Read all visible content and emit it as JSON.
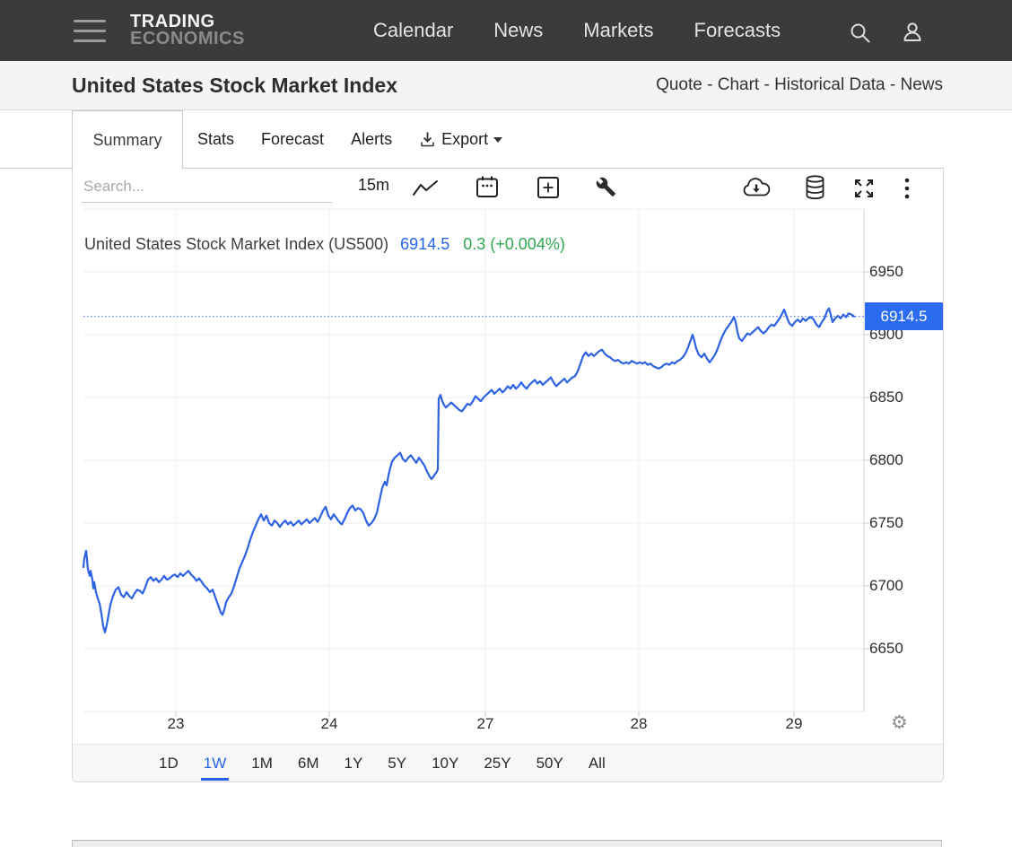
{
  "nav": {
    "logo_line1": "TRADING",
    "logo_line2": "ECONOMICS",
    "items": [
      {
        "label": "Calendar"
      },
      {
        "label": "News"
      },
      {
        "label": "Markets"
      },
      {
        "label": "Forecasts"
      }
    ]
  },
  "header": {
    "title": "United States Stock Market Index",
    "links_text": "Quote - Chart - Historical Data - News"
  },
  "tabs": [
    {
      "label": "Summary",
      "active": true
    },
    {
      "label": "Stats",
      "active": false
    },
    {
      "label": "Forecast",
      "active": false
    },
    {
      "label": "Alerts",
      "active": false
    }
  ],
  "export": {
    "label": "Export"
  },
  "toolbar": {
    "search_placeholder": "Search...",
    "interval": "15m",
    "icons": [
      "chart-type",
      "date-range",
      "add-indicator",
      "tools-wrench",
      "cloud-download",
      "data-source",
      "fullscreen",
      "more-options"
    ]
  },
  "legend": {
    "title": "United States Stock Market Index (US500)",
    "price": "6914.5",
    "change": "0.3 (+0.004%)"
  },
  "price_badge": "6914.5",
  "ranges": [
    {
      "label": "1D",
      "active": false
    },
    {
      "label": "1W",
      "active": true
    },
    {
      "label": "1M",
      "active": false
    },
    {
      "label": "6M",
      "active": false
    },
    {
      "label": "1Y",
      "active": false
    },
    {
      "label": "5Y",
      "active": false
    },
    {
      "label": "10Y",
      "active": false
    },
    {
      "label": "25Y",
      "active": false
    },
    {
      "label": "50Y",
      "active": false
    },
    {
      "label": "All",
      "active": false
    }
  ],
  "colors": {
    "accent": "#2a66e8",
    "line": "#2d63e2",
    "badge": "#2a6bf0",
    "green": "#2da84e",
    "nav_bg": "#3b3b3b"
  },
  "chart_data": {
    "type": "line",
    "title": "United States Stock Market Index (US500)",
    "last_price": 6914.5,
    "change_abs": 0.3,
    "change_pct": "+0.004%",
    "interval": "15m",
    "selected_range": "1W",
    "y_ticks": [
      6950,
      6900,
      6850,
      6800,
      6750,
      6700,
      6650
    ],
    "y_range": [
      6600,
      7000
    ],
    "x_tick_labels": [
      "23",
      "24",
      "27",
      "28",
      "29"
    ],
    "grid": true,
    "legend_position": "top-left",
    "points": [
      [
        92,
        6715
      ],
      [
        93,
        6722
      ],
      [
        95,
        6728
      ],
      [
        96,
        6721
      ],
      [
        97,
        6713
      ],
      [
        99,
        6708
      ],
      [
        100,
        6712
      ],
      [
        102,
        6705
      ],
      [
        103,
        6698
      ],
      [
        104,
        6703
      ],
      [
        106,
        6695
      ],
      [
        108,
        6690
      ],
      [
        110,
        6686
      ],
      [
        112,
        6678
      ],
      [
        114,
        6668
      ],
      [
        116,
        6663
      ],
      [
        118,
        6669
      ],
      [
        120,
        6677
      ],
      [
        122,
        6685
      ],
      [
        125,
        6692
      ],
      [
        128,
        6697
      ],
      [
        131,
        6699
      ],
      [
        134,
        6693
      ],
      [
        137,
        6691
      ],
      [
        140,
        6695
      ],
      [
        143,
        6692
      ],
      [
        146,
        6690
      ],
      [
        149,
        6694
      ],
      [
        152,
        6697
      ],
      [
        155,
        6696
      ],
      [
        158,
        6694
      ],
      [
        161,
        6699
      ],
      [
        164,
        6705
      ],
      [
        167,
        6707
      ],
      [
        170,
        6704
      ],
      [
        173,
        6706
      ],
      [
        176,
        6703
      ],
      [
        179,
        6705
      ],
      [
        182,
        6708
      ],
      [
        185,
        6705
      ],
      [
        188,
        6706
      ],
      [
        191,
        6708
      ],
      [
        194,
        6709
      ],
      [
        197,
        6707
      ],
      [
        200,
        6710
      ],
      [
        203,
        6708
      ],
      [
        206,
        6710
      ],
      [
        209,
        6712
      ],
      [
        212,
        6709
      ],
      [
        215,
        6707
      ],
      [
        218,
        6704
      ],
      [
        221,
        6706
      ],
      [
        224,
        6703
      ],
      [
        227,
        6700
      ],
      [
        230,
        6698
      ],
      [
        233,
        6695
      ],
      [
        236,
        6697
      ],
      [
        239,
        6691
      ],
      [
        242,
        6685
      ],
      [
        245,
        6679
      ],
      [
        247,
        6677
      ],
      [
        249,
        6681
      ],
      [
        251,
        6687
      ],
      [
        254,
        6691
      ],
      [
        257,
        6694
      ],
      [
        260,
        6700
      ],
      [
        263,
        6707
      ],
      [
        266,
        6714
      ],
      [
        269,
        6719
      ],
      [
        272,
        6724
      ],
      [
        275,
        6730
      ],
      [
        278,
        6737
      ],
      [
        281,
        6743
      ],
      [
        284,
        6748
      ],
      [
        287,
        6753
      ],
      [
        290,
        6757
      ],
      [
        293,
        6752
      ],
      [
        296,
        6756
      ],
      [
        299,
        6750
      ],
      [
        302,
        6748
      ],
      [
        305,
        6752
      ],
      [
        308,
        6750
      ],
      [
        311,
        6747
      ],
      [
        314,
        6750
      ],
      [
        317,
        6752
      ],
      [
        320,
        6749
      ],
      [
        323,
        6751
      ],
      [
        326,
        6748
      ],
      [
        329,
        6750
      ],
      [
        332,
        6752
      ],
      [
        335,
        6749
      ],
      [
        338,
        6751
      ],
      [
        341,
        6753
      ],
      [
        344,
        6750
      ],
      [
        347,
        6752
      ],
      [
        350,
        6754
      ],
      [
        353,
        6751
      ],
      [
        356,
        6755
      ],
      [
        359,
        6760
      ],
      [
        362,
        6763
      ],
      [
        365,
        6756
      ],
      [
        368,
        6753
      ],
      [
        371,
        6757
      ],
      [
        374,
        6754
      ],
      [
        377,
        6751
      ],
      [
        380,
        6749
      ],
      [
        383,
        6753
      ],
      [
        386,
        6758
      ],
      [
        389,
        6762
      ],
      [
        392,
        6764
      ],
      [
        395,
        6760
      ],
      [
        398,
        6762
      ],
      [
        401,
        6761
      ],
      [
        404,
        6758
      ],
      [
        407,
        6752
      ],
      [
        410,
        6748
      ],
      [
        413,
        6750
      ],
      [
        416,
        6753
      ],
      [
        419,
        6758
      ],
      [
        422,
        6768
      ],
      [
        425,
        6778
      ],
      [
        428,
        6783
      ],
      [
        430,
        6780
      ],
      [
        432,
        6788
      ],
      [
        434,
        6794
      ],
      [
        436,
        6799
      ],
      [
        439,
        6802
      ],
      [
        442,
        6804
      ],
      [
        445,
        6806
      ],
      [
        448,
        6801
      ],
      [
        451,
        6799
      ],
      [
        454,
        6802
      ],
      [
        457,
        6804
      ],
      [
        460,
        6801
      ],
      [
        463,
        6798
      ],
      [
        466,
        6802
      ],
      [
        469,
        6799
      ],
      [
        472,
        6796
      ],
      [
        475,
        6791
      ],
      [
        478,
        6787
      ],
      [
        480,
        6785
      ],
      [
        482,
        6787
      ],
      [
        484,
        6789
      ],
      [
        486,
        6791
      ],
      [
        487,
        6793
      ],
      [
        488,
        6849
      ],
      [
        490,
        6852
      ],
      [
        492,
        6847
      ],
      [
        494,
        6844
      ],
      [
        496,
        6842
      ],
      [
        499,
        6844
      ],
      [
        502,
        6846
      ],
      [
        505,
        6844
      ],
      [
        508,
        6842
      ],
      [
        511,
        6840
      ],
      [
        514,
        6839
      ],
      [
        517,
        6842
      ],
      [
        520,
        6845
      ],
      [
        523,
        6844
      ],
      [
        526,
        6847
      ],
      [
        529,
        6851
      ],
      [
        532,
        6849
      ],
      [
        535,
        6847
      ],
      [
        538,
        6850
      ],
      [
        541,
        6852
      ],
      [
        544,
        6854
      ],
      [
        547,
        6856
      ],
      [
        550,
        6853
      ],
      [
        553,
        6855
      ],
      [
        556,
        6857
      ],
      [
        559,
        6854
      ],
      [
        562,
        6856
      ],
      [
        565,
        6859
      ],
      [
        568,
        6857
      ],
      [
        571,
        6860
      ],
      [
        574,
        6857
      ],
      [
        577,
        6859
      ],
      [
        580,
        6862
      ],
      [
        583,
        6859
      ],
      [
        586,
        6857
      ],
      [
        589,
        6860
      ],
      [
        592,
        6862
      ],
      [
        595,
        6864
      ],
      [
        598,
        6861
      ],
      [
        601,
        6863
      ],
      [
        604,
        6860
      ],
      [
        607,
        6862
      ],
      [
        610,
        6864
      ],
      [
        613,
        6866
      ],
      [
        616,
        6862
      ],
      [
        619,
        6859
      ],
      [
        622,
        6861
      ],
      [
        625,
        6863
      ],
      [
        628,
        6865
      ],
      [
        631,
        6862
      ],
      [
        634,
        6864
      ],
      [
        637,
        6866
      ],
      [
        640,
        6867
      ],
      [
        643,
        6871
      ],
      [
        646,
        6877
      ],
      [
        649,
        6883
      ],
      [
        652,
        6886
      ],
      [
        655,
        6883
      ],
      [
        658,
        6885
      ],
      [
        661,
        6883
      ],
      [
        664,
        6885
      ],
      [
        667,
        6887
      ],
      [
        670,
        6888
      ],
      [
        673,
        6885
      ],
      [
        676,
        6883
      ],
      [
        679,
        6882
      ],
      [
        682,
        6880
      ],
      [
        685,
        6879
      ],
      [
        688,
        6880
      ],
      [
        691,
        6878
      ],
      [
        694,
        6877
      ],
      [
        697,
        6878
      ],
      [
        700,
        6877
      ],
      [
        703,
        6879
      ],
      [
        706,
        6878
      ],
      [
        709,
        6877
      ],
      [
        712,
        6878
      ],
      [
        715,
        6877
      ],
      [
        718,
        6878
      ],
      [
        721,
        6876
      ],
      [
        724,
        6877
      ],
      [
        727,
        6875
      ],
      [
        730,
        6874
      ],
      [
        733,
        6873
      ],
      [
        736,
        6874
      ],
      [
        739,
        6876
      ],
      [
        742,
        6877
      ],
      [
        745,
        6876
      ],
      [
        748,
        6878
      ],
      [
        751,
        6877
      ],
      [
        754,
        6879
      ],
      [
        757,
        6880
      ],
      [
        760,
        6882
      ],
      [
        763,
        6885
      ],
      [
        766,
        6890
      ],
      [
        769,
        6896
      ],
      [
        771,
        6900
      ],
      [
        773,
        6895
      ],
      [
        775,
        6889
      ],
      [
        778,
        6884
      ],
      [
        781,
        6882
      ],
      [
        784,
        6885
      ],
      [
        787,
        6881
      ],
      [
        790,
        6878
      ],
      [
        793,
        6881
      ],
      [
        796,
        6884
      ],
      [
        799,
        6889
      ],
      [
        802,
        6895
      ],
      [
        805,
        6900
      ],
      [
        808,
        6904
      ],
      [
        811,
        6907
      ],
      [
        814,
        6910
      ],
      [
        817,
        6914
      ],
      [
        819,
        6910
      ],
      [
        821,
        6902
      ],
      [
        823,
        6897
      ],
      [
        826,
        6895
      ],
      [
        829,
        6898
      ],
      [
        832,
        6901
      ],
      [
        835,
        6900
      ],
      [
        838,
        6902
      ],
      [
        841,
        6904
      ],
      [
        844,
        6906
      ],
      [
        847,
        6903
      ],
      [
        850,
        6901
      ],
      [
        853,
        6903
      ],
      [
        856,
        6906
      ],
      [
        859,
        6908
      ],
      [
        862,
        6907
      ],
      [
        865,
        6910
      ],
      [
        868,
        6913
      ],
      [
        871,
        6917
      ],
      [
        873,
        6920
      ],
      [
        875,
        6916
      ],
      [
        877,
        6912
      ],
      [
        879,
        6909
      ],
      [
        882,
        6907
      ],
      [
        885,
        6910
      ],
      [
        888,
        6912
      ],
      [
        891,
        6910
      ],
      [
        894,
        6913
      ],
      [
        897,
        6911
      ],
      [
        900,
        6913
      ],
      [
        903,
        6914
      ],
      [
        906,
        6912
      ],
      [
        909,
        6908
      ],
      [
        912,
        6906
      ],
      [
        915,
        6910
      ],
      [
        918,
        6913
      ],
      [
        921,
        6919
      ],
      [
        923,
        6921
      ],
      [
        925,
        6916
      ],
      [
        927,
        6910
      ],
      [
        930,
        6913
      ],
      [
        933,
        6915
      ],
      [
        936,
        6913
      ],
      [
        939,
        6916
      ],
      [
        942,
        6914
      ],
      [
        945,
        6917
      ],
      [
        948,
        6916
      ],
      [
        951,
        6914.5
      ]
    ]
  }
}
